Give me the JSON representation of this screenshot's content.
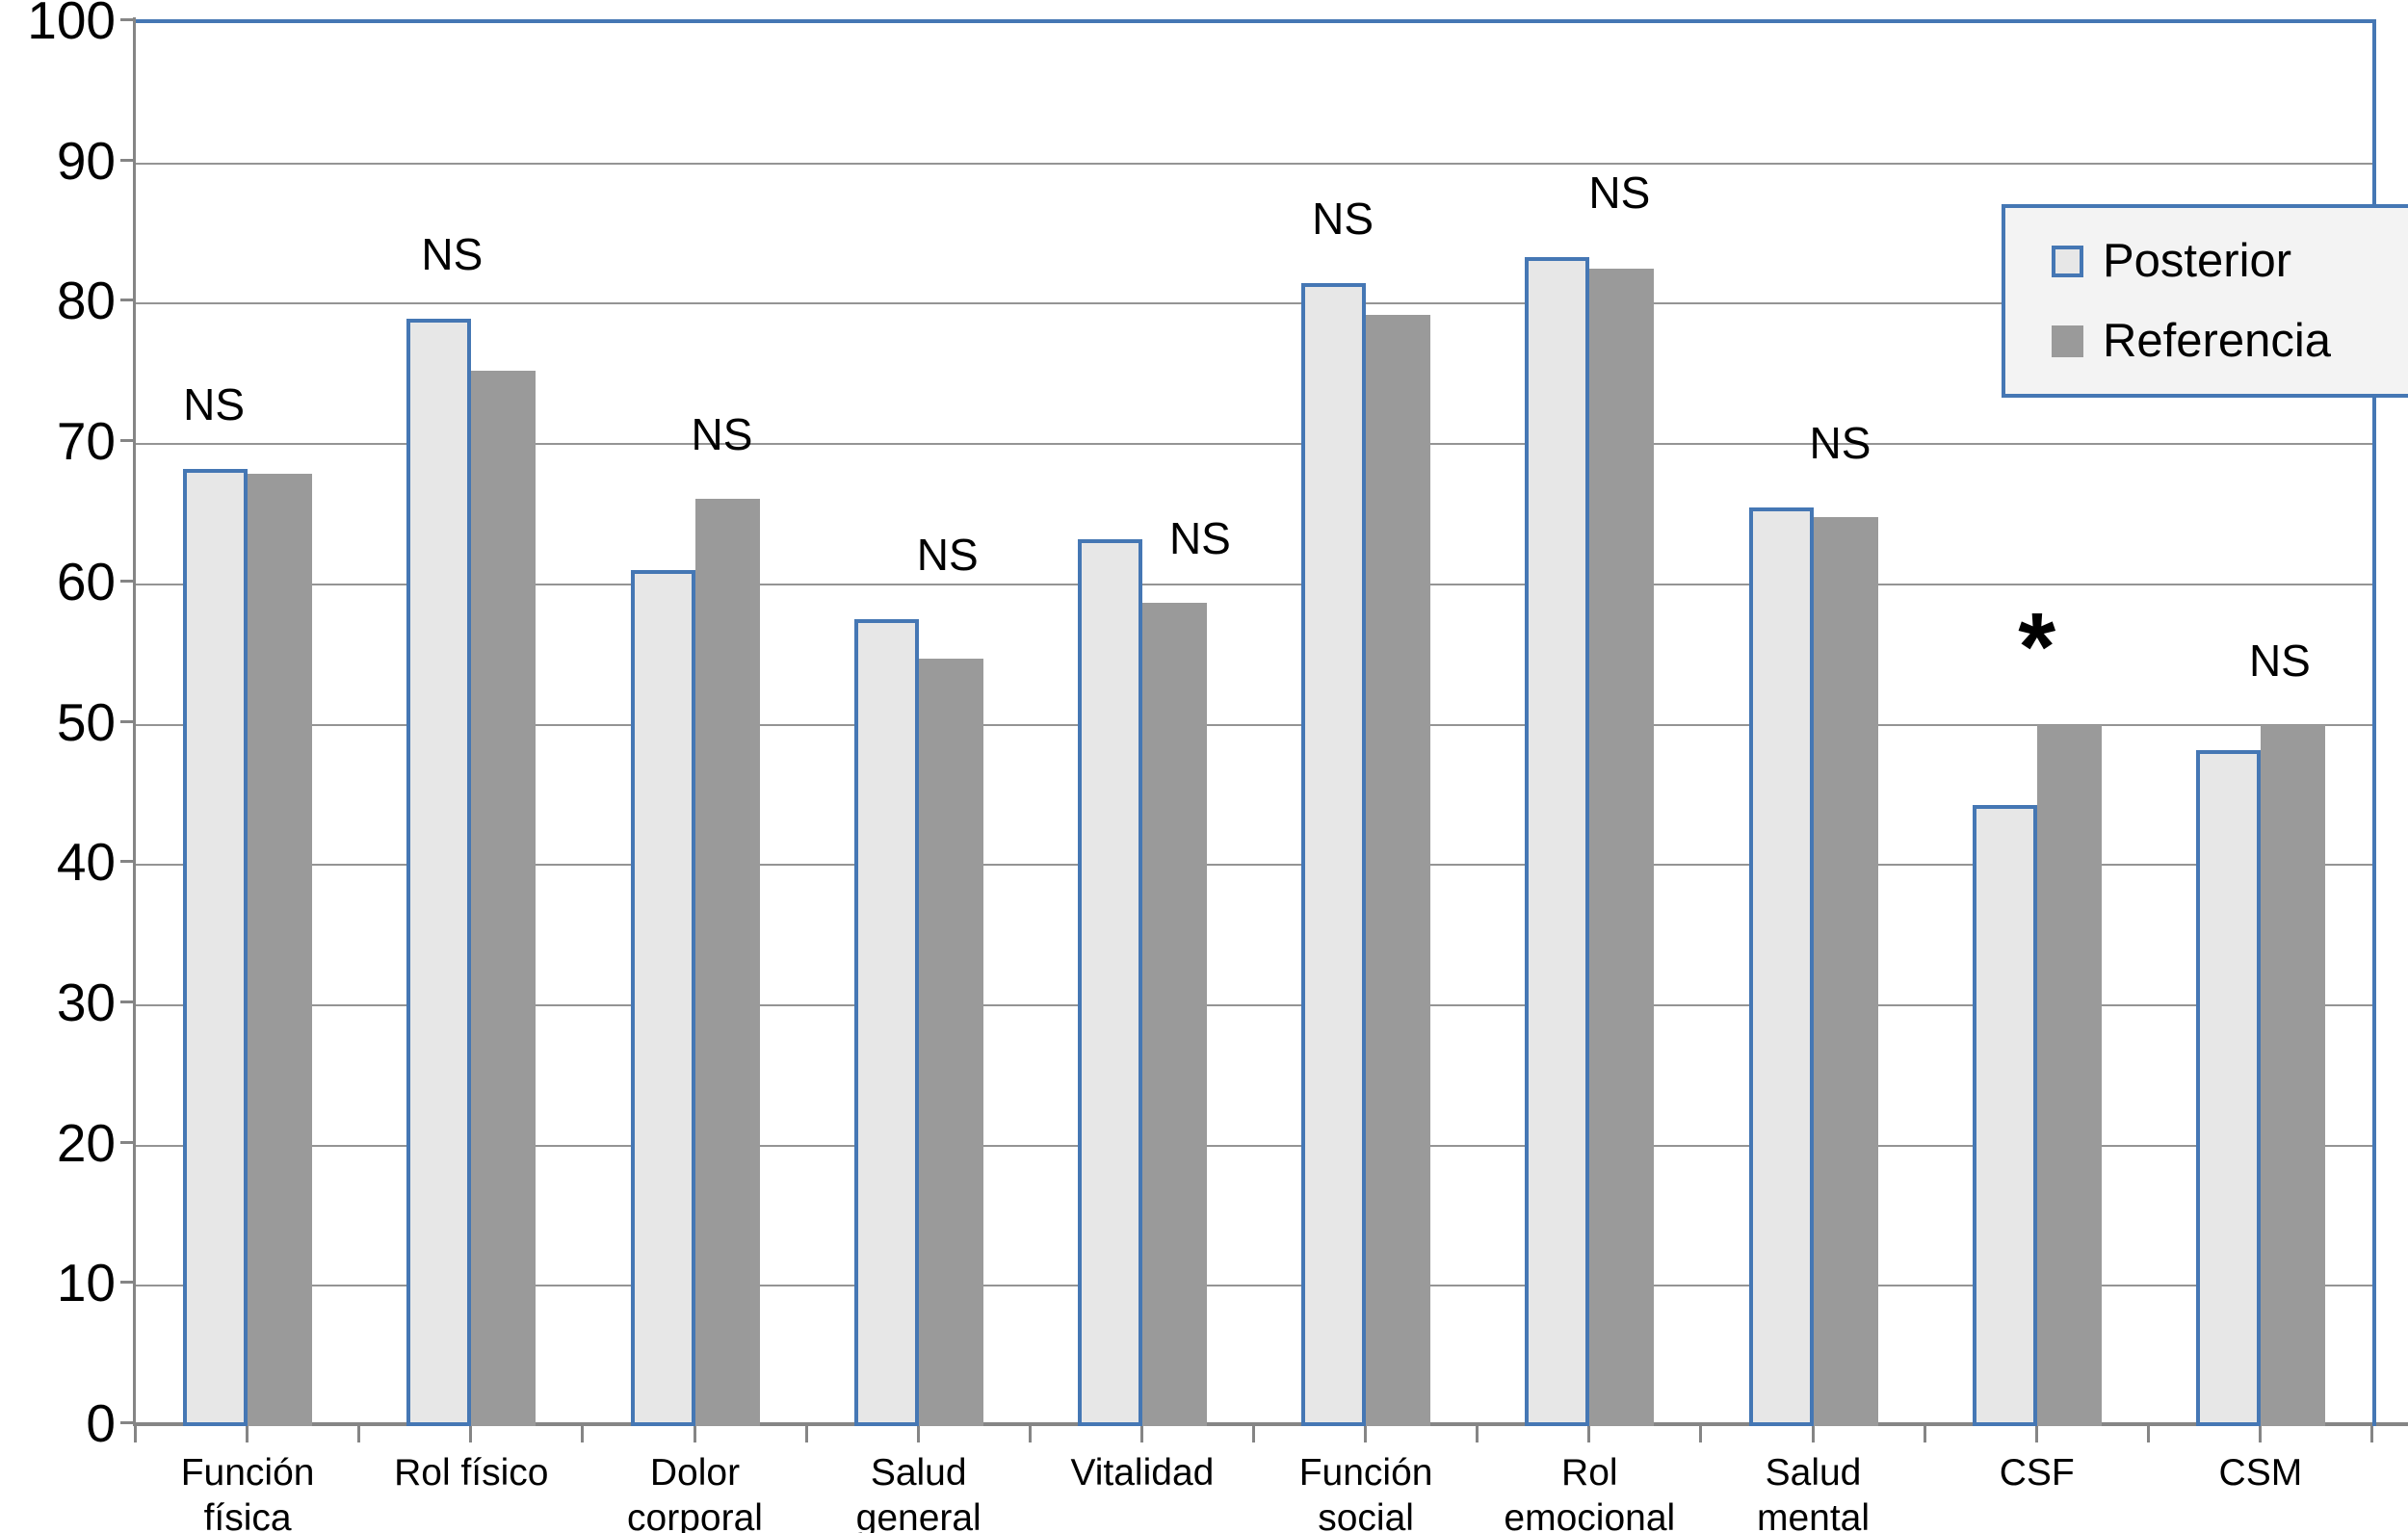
{
  "chart_data": {
    "type": "bar",
    "title": "",
    "categories": [
      "Función física",
      "Rol físico",
      "Dolor corporal",
      "Salud general",
      "Vitalidad",
      "Función social",
      "Rol emocional",
      "Salud mental",
      "CSF",
      "CSM"
    ],
    "category_lines": [
      [
        "Función",
        "física"
      ],
      [
        "Rol físico"
      ],
      [
        "Dolor",
        "corporal"
      ],
      [
        "Salud",
        "general"
      ],
      [
        "Vitalidad"
      ],
      [
        "Función",
        "social"
      ],
      [
        "Rol",
        "emocional"
      ],
      [
        "Salud",
        "mental"
      ],
      [
        "CSF"
      ],
      [
        "CSM"
      ]
    ],
    "series": [
      {
        "name": "Posterior",
        "values": [
          68.2,
          78.9,
          61.0,
          57.5,
          63.2,
          81.5,
          83.3,
          65.5,
          44.3,
          48.2
        ]
      },
      {
        "name": "Referencia",
        "values": [
          67.9,
          75.2,
          66.1,
          54.7,
          58.7,
          79.2,
          82.5,
          64.8,
          50.0,
          50.0
        ]
      }
    ],
    "annotations": [
      {
        "text": "NS",
        "dx": -35
      },
      {
        "text": "NS",
        "dx": -20
      },
      {
        "text": "NS",
        "dx": 28
      },
      {
        "text": "NS",
        "dx": 30
      },
      {
        "text": "NS",
        "dx": 60,
        "anchor": "ref"
      },
      {
        "text": "NS",
        "dx": -24
      },
      {
        "text": "NS",
        "dx": 31
      },
      {
        "text": "NS",
        "dx": 28
      },
      {
        "text": "*",
        "dx": 0
      },
      {
        "text": "NS",
        "dx": 20
      }
    ],
    "ylim": [
      0,
      100
    ],
    "ytick_step": 10,
    "grid": "horizontal",
    "legend_position": "top-right",
    "colors": {
      "posterior_fill": "#e7e7e7",
      "posterior_border": "#4577b4",
      "referencia_fill": "#9a9a9a",
      "gridline": "#949494",
      "axis": "#858585",
      "legend_bg": "#f3f3f3",
      "frame_blue": "#4577b4"
    }
  },
  "legend": {
    "items": [
      {
        "label": "Posterior"
      },
      {
        "label": "Referencia"
      }
    ]
  }
}
